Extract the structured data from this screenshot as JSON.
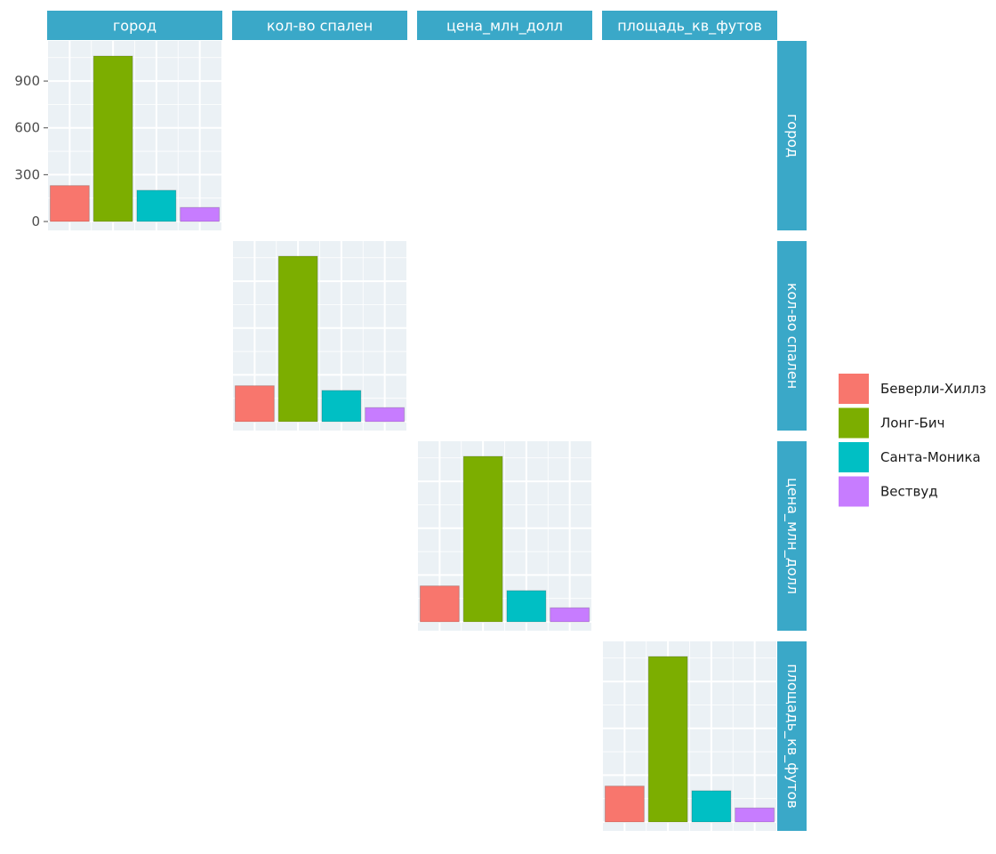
{
  "chart_data": {
    "type": "bar",
    "title": "",
    "variables": [
      "город",
      "кол-во спален",
      "цена_млн_долл",
      "площадь_кв_футов"
    ],
    "categories": [
      "Беверли-Хиллз",
      "Лонг-Бич",
      "Санта-Моника",
      "Вествуд"
    ],
    "values": [
      230,
      1060,
      200,
      90
    ],
    "ylim": [
      0,
      1100
    ],
    "yticks": [
      0,
      300,
      600,
      900
    ],
    "ytick_labels": [
      "0",
      "300",
      "600",
      "900"
    ],
    "grid": true,
    "legend_position": "right",
    "colors": [
      "#f8766d",
      "#7cae00",
      "#00bfc4",
      "#c77cff"
    ]
  }
}
